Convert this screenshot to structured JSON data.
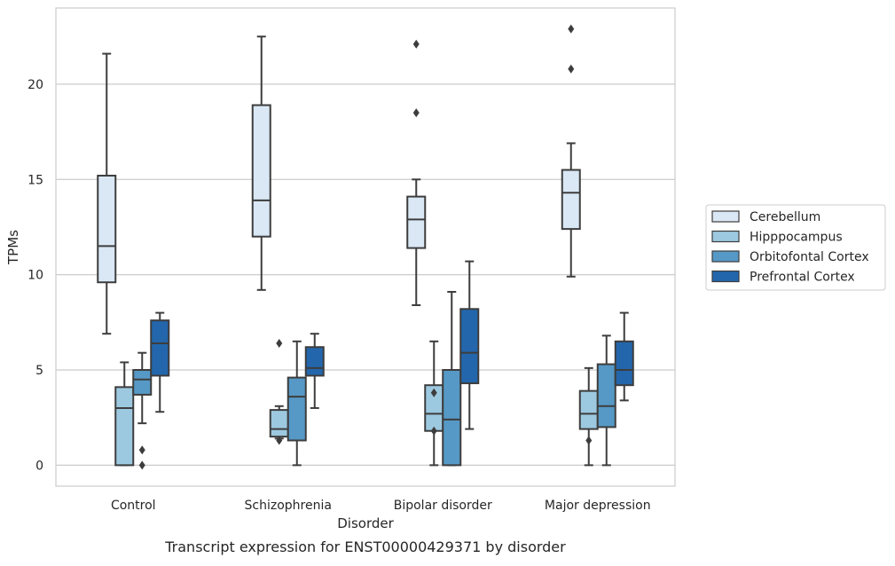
{
  "chart_data": {
    "type": "box",
    "title": "Transcript expression for ENST00000429371 by disorder",
    "xlabel": "Disorder",
    "ylabel": "TPMs",
    "ylim": [
      -1.1,
      24.0
    ],
    "yticks": [
      0,
      5,
      10,
      15,
      20
    ],
    "grid": "horizontal",
    "legend_position": "right",
    "categories": [
      "Control",
      "Schizophrenia",
      "Bipolar disorder",
      "Major depression"
    ],
    "series": [
      {
        "name": "Cerebellum",
        "color": "#dae8f5",
        "boxes": [
          {
            "whislo": 6.9,
            "q1": 9.6,
            "med": 11.5,
            "q3": 15.2,
            "whishi": 21.6,
            "fliers": []
          },
          {
            "whislo": 9.2,
            "q1": 12.0,
            "med": 13.9,
            "q3": 18.9,
            "whishi": 22.5,
            "fliers": []
          },
          {
            "whislo": 8.4,
            "q1": 11.4,
            "med": 12.9,
            "q3": 14.1,
            "whishi": 15.0,
            "fliers": [
              18.5,
              22.1
            ]
          },
          {
            "whislo": 9.9,
            "q1": 12.4,
            "med": 14.3,
            "q3": 15.5,
            "whishi": 16.9,
            "fliers": [
              20.8,
              22.9
            ]
          }
        ]
      },
      {
        "name": "Hipppocampus",
        "color": "#9dc9e0",
        "boxes": [
          {
            "whislo": 0.0,
            "q1": 0.0,
            "med": 3.0,
            "q3": 4.1,
            "whishi": 5.4,
            "fliers": []
          },
          {
            "whislo": 1.4,
            "q1": 1.5,
            "med": 1.9,
            "q3": 2.9,
            "whishi": 3.1,
            "fliers": [
              1.3,
              6.4
            ]
          },
          {
            "whislo": 0.0,
            "q1": 1.8,
            "med": 2.7,
            "q3": 4.2,
            "whishi": 6.5,
            "fliers": [
              1.8,
              3.8
            ]
          },
          {
            "whislo": 0.0,
            "q1": 1.9,
            "med": 2.7,
            "q3": 3.9,
            "whishi": 5.1,
            "fliers": [
              1.3
            ]
          }
        ]
      },
      {
        "name": "Orbitofontal Cortex",
        "color": "#5699c6",
        "boxes": [
          {
            "whislo": 2.2,
            "q1": 3.7,
            "med": 4.5,
            "q3": 5.0,
            "whishi": 5.9,
            "fliers": [
              0.0,
              0.8
            ]
          },
          {
            "whislo": 0.0,
            "q1": 1.3,
            "med": 3.6,
            "q3": 4.6,
            "whishi": 6.5,
            "fliers": []
          },
          {
            "whislo": 0.0,
            "q1": 0.0,
            "med": 2.4,
            "q3": 5.0,
            "whishi": 9.1,
            "fliers": []
          },
          {
            "whislo": 0.0,
            "q1": 2.0,
            "med": 3.1,
            "q3": 5.3,
            "whishi": 6.8,
            "fliers": []
          }
        ]
      },
      {
        "name": "Prefrontal Cortex",
        "color": "#2366ac",
        "boxes": [
          {
            "whislo": 2.8,
            "q1": 4.7,
            "med": 6.4,
            "q3": 7.6,
            "whishi": 8.0,
            "fliers": []
          },
          {
            "whislo": 3.0,
            "q1": 4.7,
            "med": 5.1,
            "q3": 6.2,
            "whishi": 6.9,
            "fliers": []
          },
          {
            "whislo": 1.9,
            "q1": 4.3,
            "med": 5.9,
            "q3": 8.2,
            "whishi": 10.7,
            "fliers": []
          },
          {
            "whislo": 3.4,
            "q1": 4.2,
            "med": 5.0,
            "q3": 6.5,
            "whishi": 8.0,
            "fliers": []
          }
        ]
      }
    ]
  }
}
